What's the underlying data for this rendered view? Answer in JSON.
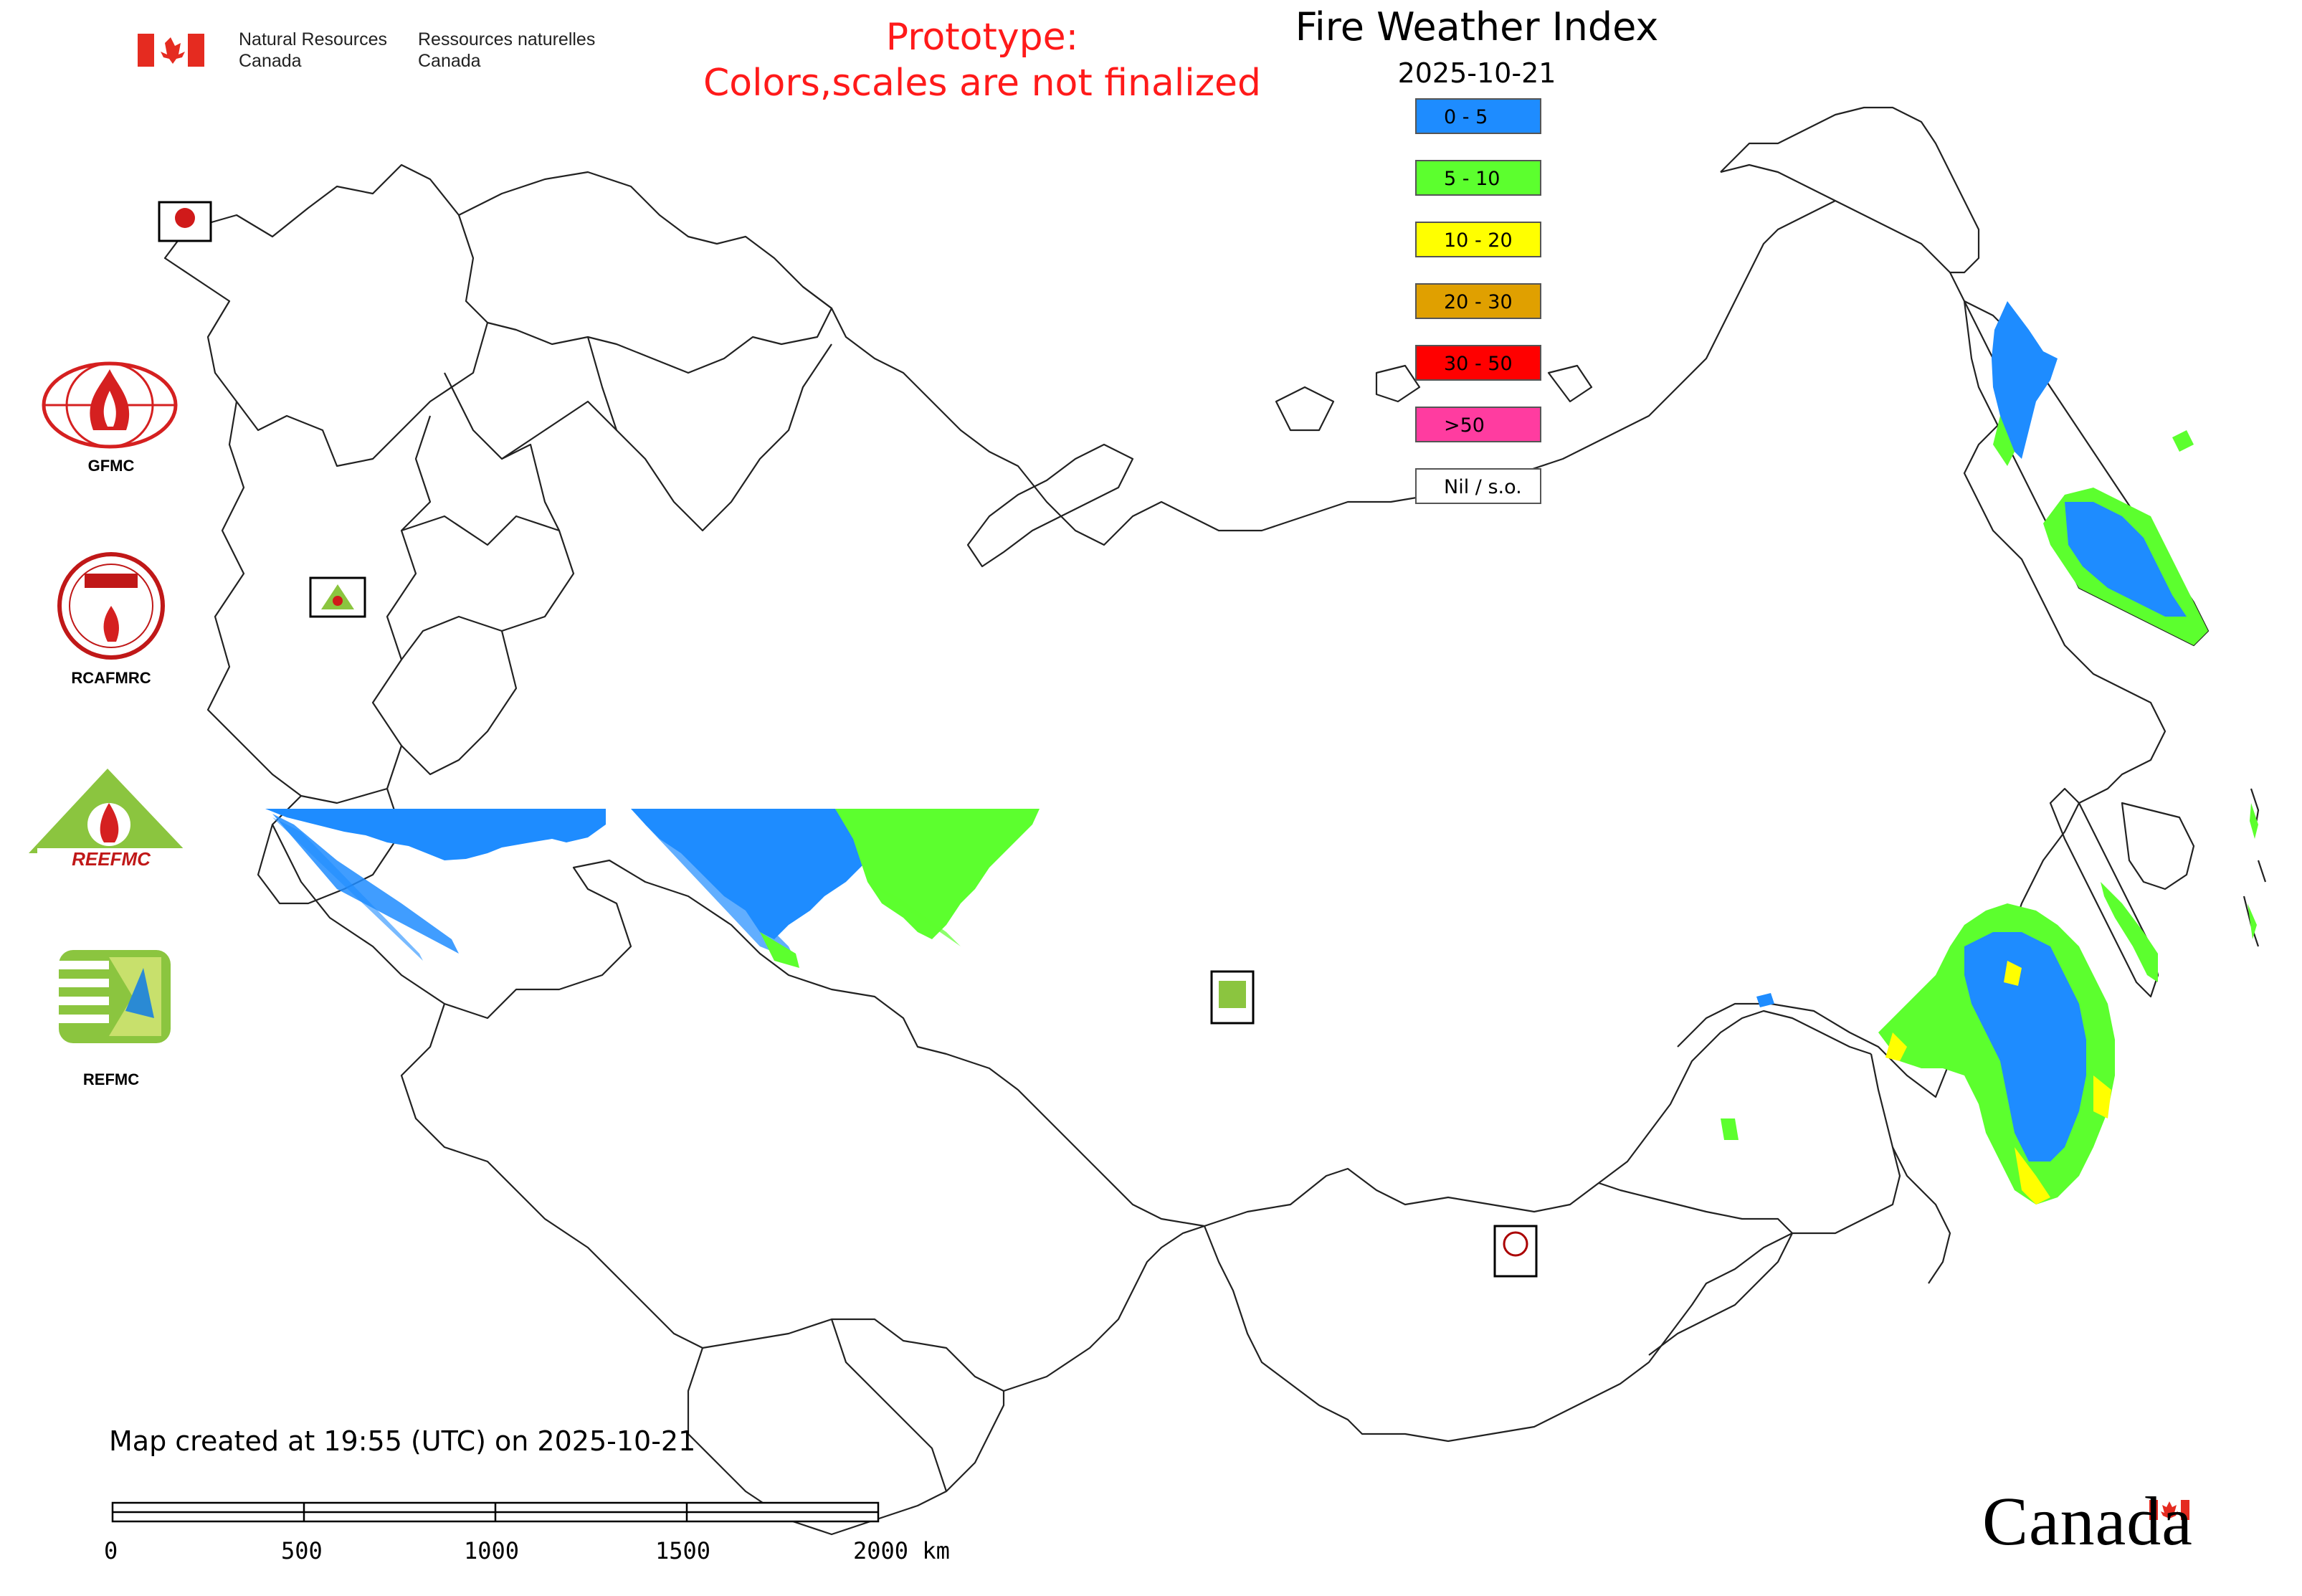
{
  "header": {
    "nrcan_en": "Natural Resources\nCanada",
    "nrcan_fr": "Ressources naturelles\nCanada",
    "prototype_line1": "Prototype:",
    "prototype_line2": "Colors,scales are not finalized"
  },
  "map": {
    "title": "Fire Weather Index",
    "date": "2025-10-21",
    "legend": [
      {
        "label": "0 - 5",
        "color": "#1e8cff"
      },
      {
        "label": "5 - 10",
        "color": "#5cff2e"
      },
      {
        "label": "10 - 20",
        "color": "#ffff00"
      },
      {
        "label": "20 - 30",
        "color": "#e0a000"
      },
      {
        "label": "30 - 50",
        "color": "#ff0000"
      },
      {
        "label": ">50",
        "color": "#ff3ca0"
      },
      {
        "label": "Nil / s.o.",
        "color": "#ffffff"
      }
    ]
  },
  "logos": {
    "gfmc": "GFMC",
    "rcafmrc": "RCAFMRC",
    "reefmc": "REEFMC",
    "refmc": "REFMC"
  },
  "footer": {
    "created": "Map created at 19:55 (UTC) on 2025-10-21",
    "scale_labels": [
      "0",
      "500",
      "1000",
      "1500",
      "2000 km"
    ],
    "canada_wordmark": "Canada"
  },
  "colors": {
    "fwi_low": "#1e8cff",
    "fwi_moderate": "#5cff2e",
    "fwi_high": "#ffff00",
    "canada_red": "#e52b20",
    "prototype_red": "#ff1a1a"
  }
}
